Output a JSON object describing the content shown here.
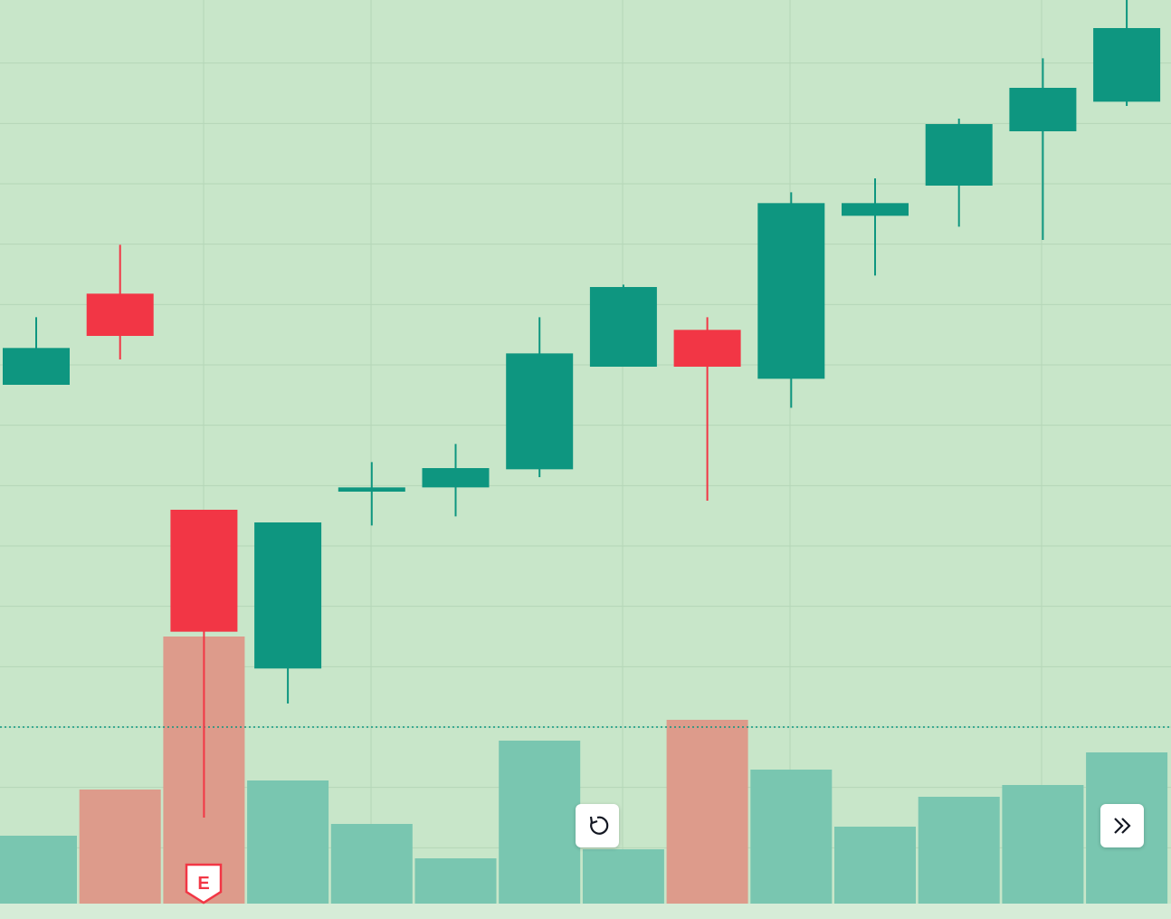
{
  "chart_data": {
    "type": "candlestick",
    "open": [
      8.67,
      10.18,
      6.6,
      3.97,
      6.9,
      6.97,
      7.27,
      8.97,
      9.58,
      8.77,
      11.47,
      11.97,
      12.87,
      13.36
    ],
    "high": [
      9.79,
      10.99,
      6.6,
      6.39,
      7.39,
      7.69,
      9.79,
      10.33,
      9.79,
      11.86,
      12.09,
      13.08,
      14.08,
      15.12
    ],
    "low": [
      8.67,
      9.09,
      1.5,
      3.39,
      6.34,
      6.49,
      7.14,
      8.97,
      6.75,
      8.29,
      10.48,
      11.29,
      11.07,
      13.29
    ],
    "close": [
      9.28,
      9.48,
      4.58,
      6.39,
      6.97,
      7.29,
      9.19,
      10.29,
      8.97,
      11.68,
      11.68,
      12.99,
      13.59,
      14.58
    ],
    "volume": [
      75,
      126,
      295,
      136,
      88,
      50,
      180,
      60,
      203,
      148,
      85,
      118,
      131,
      167
    ],
    "ylim": [
      0,
      15
    ],
    "yticks": [
      1,
      2,
      3,
      4,
      5,
      6,
      7,
      8,
      9,
      10,
      11,
      12,
      13,
      14
    ],
    "y2lim": [
      0,
      1000
    ],
    "grid": true,
    "up_color": "#0e9680",
    "down_color": "#f23645",
    "up_volume_color": "#79c6b0",
    "down_volume_color": "#dd9b8b",
    "price_line": 3.0,
    "annotations": [
      "E"
    ]
  }
}
